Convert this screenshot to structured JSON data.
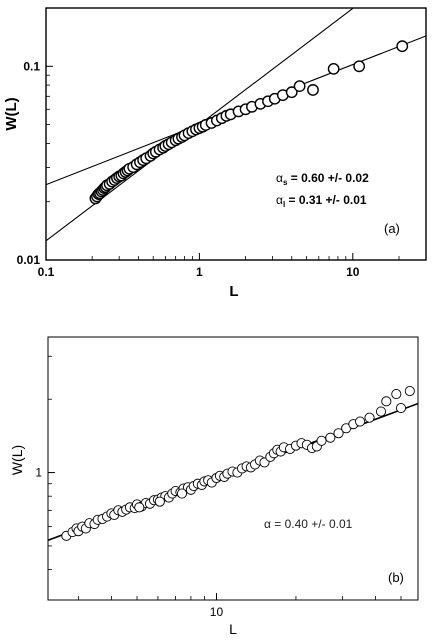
{
  "chart_data": [
    {
      "type": "scatter",
      "panel_label": "(a)",
      "xlabel": "L",
      "ylabel": "W(L)",
      "xscale": "log",
      "yscale": "log",
      "xlim": [
        0.1,
        30
      ],
      "ylim": [
        0.01,
        0.2
      ],
      "x_ticks": [
        {
          "v": 0.1,
          "label": "0.1"
        },
        {
          "v": 1,
          "label": "1"
        },
        {
          "v": 10,
          "label": "10"
        }
      ],
      "y_ticks": [
        {
          "v": 0.01,
          "label": "0.01"
        },
        {
          "v": 0.1,
          "label": "0.1"
        }
      ],
      "annotation_lines": [
        {
          "greek": "α",
          "sub": "s",
          "text": " = 0.60 +/- 0.02"
        },
        {
          "greek": "α",
          "sub": "l",
          "text": " = 0.31 +/- 0.01"
        }
      ],
      "fit_lines": [
        {
          "slope": 0.6,
          "x0": 1,
          "y0": 0.05
        },
        {
          "slope": 0.31,
          "x0": 1,
          "y0": 0.05
        }
      ],
      "points": [
        [
          0.21,
          0.0208
        ],
        [
          0.215,
          0.0213
        ],
        [
          0.22,
          0.0219
        ],
        [
          0.225,
          0.0221
        ],
        [
          0.23,
          0.0226
        ],
        [
          0.235,
          0.023
        ],
        [
          0.24,
          0.0235
        ],
        [
          0.245,
          0.0238
        ],
        [
          0.25,
          0.0243
        ],
        [
          0.26,
          0.0247
        ],
        [
          0.27,
          0.0254
        ],
        [
          0.28,
          0.0259
        ],
        [
          0.29,
          0.0265
        ],
        [
          0.3,
          0.027
        ],
        [
          0.31,
          0.0273
        ],
        [
          0.32,
          0.028
        ],
        [
          0.33,
          0.0285
        ],
        [
          0.34,
          0.029
        ],
        [
          0.35,
          0.0296
        ],
        [
          0.37,
          0.0302
        ],
        [
          0.39,
          0.0312
        ],
        [
          0.41,
          0.032
        ],
        [
          0.43,
          0.0328
        ],
        [
          0.45,
          0.0335
        ],
        [
          0.48,
          0.0345
        ],
        [
          0.5,
          0.0355
        ],
        [
          0.52,
          0.0362
        ],
        [
          0.55,
          0.0372
        ],
        [
          0.58,
          0.038
        ],
        [
          0.6,
          0.0388
        ],
        [
          0.63,
          0.0396
        ],
        [
          0.66,
          0.0405
        ],
        [
          0.7,
          0.0415
        ],
        [
          0.73,
          0.0423
        ],
        [
          0.77,
          0.0432
        ],
        [
          0.8,
          0.044
        ],
        [
          0.85,
          0.0452
        ],
        [
          0.9,
          0.0462
        ],
        [
          0.95,
          0.0472
        ],
        [
          1.0,
          0.048
        ],
        [
          1.05,
          0.0488
        ],
        [
          1.1,
          0.0498
        ],
        [
          1.2,
          0.051
        ],
        [
          1.3,
          0.0525
        ],
        [
          1.4,
          0.054
        ],
        [
          1.5,
          0.0555
        ],
        [
          1.6,
          0.0565
        ],
        [
          1.8,
          0.0585
        ],
        [
          2.0,
          0.06
        ],
        [
          2.2,
          0.0618
        ],
        [
          2.5,
          0.064
        ],
        [
          2.8,
          0.066
        ],
        [
          3.1,
          0.068
        ],
        [
          3.5,
          0.071
        ],
        [
          4.0,
          0.0735
        ],
        [
          4.5,
          0.079
        ],
        [
          5.5,
          0.0755
        ],
        [
          7.5,
          0.097
        ],
        [
          11,
          0.1
        ],
        [
          21,
          0.127
        ]
      ]
    },
    {
      "type": "scatter",
      "panel_label": "(b)",
      "xlabel": "L",
      "ylabel": "W(L)",
      "xscale": "log",
      "yscale": "log",
      "xlim": [
        2.3,
        58
      ],
      "ylim": [
        0.3,
        3.6
      ],
      "x_ticks": [
        {
          "v": 10,
          "label": "10"
        }
      ],
      "y_ticks": [
        {
          "v": 1,
          "label": "1"
        }
      ],
      "annotation_lines": [
        {
          "greek": "α",
          "sub": "",
          "text": " = 0.40 +/- 0.01"
        }
      ],
      "fit_lines": [
        {
          "slope": 0.4,
          "x0": 10,
          "y0": 0.95
        }
      ],
      "points": [
        [
          2.7,
          0.55
        ],
        [
          2.85,
          0.57
        ],
        [
          2.95,
          0.59
        ],
        [
          3.0,
          0.575
        ],
        [
          3.1,
          0.6
        ],
        [
          3.2,
          0.59
        ],
        [
          3.3,
          0.62
        ],
        [
          3.45,
          0.615
        ],
        [
          3.55,
          0.64
        ],
        [
          3.7,
          0.645
        ],
        [
          3.85,
          0.66
        ],
        [
          4.0,
          0.68
        ],
        [
          4.1,
          0.67
        ],
        [
          4.25,
          0.7
        ],
        [
          4.4,
          0.69
        ],
        [
          4.55,
          0.705
        ],
        [
          4.7,
          0.72
        ],
        [
          4.9,
          0.715
        ],
        [
          5.0,
          0.74
        ],
        [
          5.2,
          0.725
        ],
        [
          5.4,
          0.75
        ],
        [
          5.6,
          0.745
        ],
        [
          5.8,
          0.77
        ],
        [
          6.0,
          0.775
        ],
        [
          6.2,
          0.79
        ],
        [
          6.4,
          0.8
        ],
        [
          6.6,
          0.79
        ],
        [
          6.8,
          0.82
        ],
        [
          7.0,
          0.84
        ],
        [
          7.3,
          0.83
        ],
        [
          7.5,
          0.86
        ],
        [
          7.8,
          0.87
        ],
        [
          8.0,
          0.85
        ],
        [
          8.2,
          0.88
        ],
        [
          8.5,
          0.9
        ],
        [
          8.8,
          0.89
        ],
        [
          9.0,
          0.92
        ],
        [
          9.3,
          0.93
        ],
        [
          9.6,
          0.91
        ],
        [
          10.0,
          0.95
        ],
        [
          10.3,
          0.97
        ],
        [
          10.7,
          0.96
        ],
        [
          11.0,
          0.99
        ],
        [
          11.5,
          1.01
        ],
        [
          12.0,
          1.0
        ],
        [
          12.5,
          1.04
        ],
        [
          13.0,
          1.06
        ],
        [
          13.5,
          1.05
        ],
        [
          14.0,
          1.08
        ],
        [
          14.6,
          1.12
        ],
        [
          15.2,
          1.1
        ],
        [
          16.0,
          1.16
        ],
        [
          16.5,
          1.2
        ],
        [
          17.0,
          1.24
        ],
        [
          17.5,
          1.22
        ],
        [
          18.0,
          1.27
        ],
        [
          19.0,
          1.25
        ],
        [
          20.0,
          1.29
        ],
        [
          21.0,
          1.32
        ],
        [
          22.0,
          1.3
        ],
        [
          23.0,
          1.26
        ],
        [
          24.0,
          1.28
        ],
        [
          25.0,
          1.35
        ],
        [
          27.0,
          1.39
        ],
        [
          29.0,
          1.45
        ],
        [
          31.0,
          1.52
        ],
        [
          33.0,
          1.58
        ],
        [
          35.0,
          1.62
        ],
        [
          38.0,
          1.68
        ],
        [
          42.0,
          1.78
        ],
        [
          44.0,
          1.96
        ],
        [
          48.0,
          2.1
        ],
        [
          50.0,
          1.84
        ],
        [
          54.0,
          2.16
        ],
        [
          7.4,
          0.82
        ],
        [
          6.1,
          0.76
        ],
        [
          5.1,
          0.72
        ]
      ]
    }
  ]
}
